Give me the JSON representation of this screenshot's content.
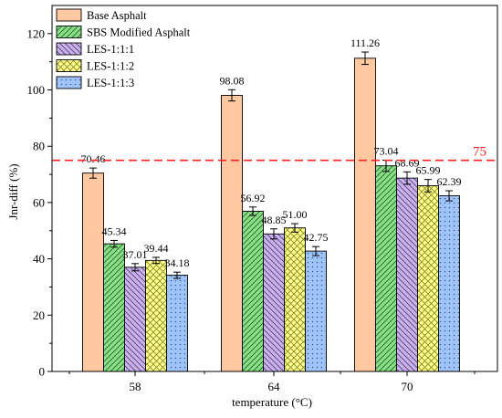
{
  "chart_data": {
    "type": "bar",
    "xlabel": "temperature (°C)",
    "ylabel": "Jnr-diff (%)",
    "ylim": [
      0,
      130
    ],
    "yticks": [
      0,
      20,
      40,
      60,
      80,
      100,
      120
    ],
    "categories": [
      "58",
      "64",
      "70"
    ],
    "series": [
      {
        "name": "Base Asphalt",
        "values": [
          70.46,
          98.08,
          111.26
        ],
        "errors": [
          1.8,
          2.0,
          2.2
        ],
        "labels": [
          "70.46",
          "98.08",
          "111.26"
        ],
        "color": "#ffc8a0",
        "pattern": "none"
      },
      {
        "name": "SBS Modified Asphalt",
        "values": [
          45.34,
          56.92,
          73.04
        ],
        "errors": [
          1.2,
          1.5,
          2.0
        ],
        "labels": [
          "45.34",
          "56.92",
          "73.04"
        ],
        "color": "#8cde8c",
        "pattern": "diag-right"
      },
      {
        "name": "LES-1:1:1",
        "values": [
          37.01,
          48.85,
          68.69
        ],
        "errors": [
          1.3,
          1.8,
          2.2
        ],
        "labels": [
          "37.01",
          "48.85",
          "68.69"
        ],
        "color": "#c8b4e6",
        "pattern": "diag-left"
      },
      {
        "name": "LES-1:1:2",
        "values": [
          39.44,
          51.0,
          65.99
        ],
        "errors": [
          1.1,
          1.5,
          2.2
        ],
        "labels": [
          "39.44",
          "51.00",
          "65.99"
        ],
        "color": "#ffff9a",
        "pattern": "cross"
      },
      {
        "name": "LES-1:1:3",
        "values": [
          34.18,
          42.75,
          62.39
        ],
        "errors": [
          1.1,
          1.6,
          1.8
        ],
        "labels": [
          "34.18",
          "42.75",
          "62.39"
        ],
        "color": "#a0c4f8",
        "pattern": "dots"
      }
    ],
    "reference_line": {
      "value": 75,
      "label": "75",
      "color": "#ff2020",
      "style": "dashed"
    },
    "legend_position": "top-left",
    "grid": false
  }
}
